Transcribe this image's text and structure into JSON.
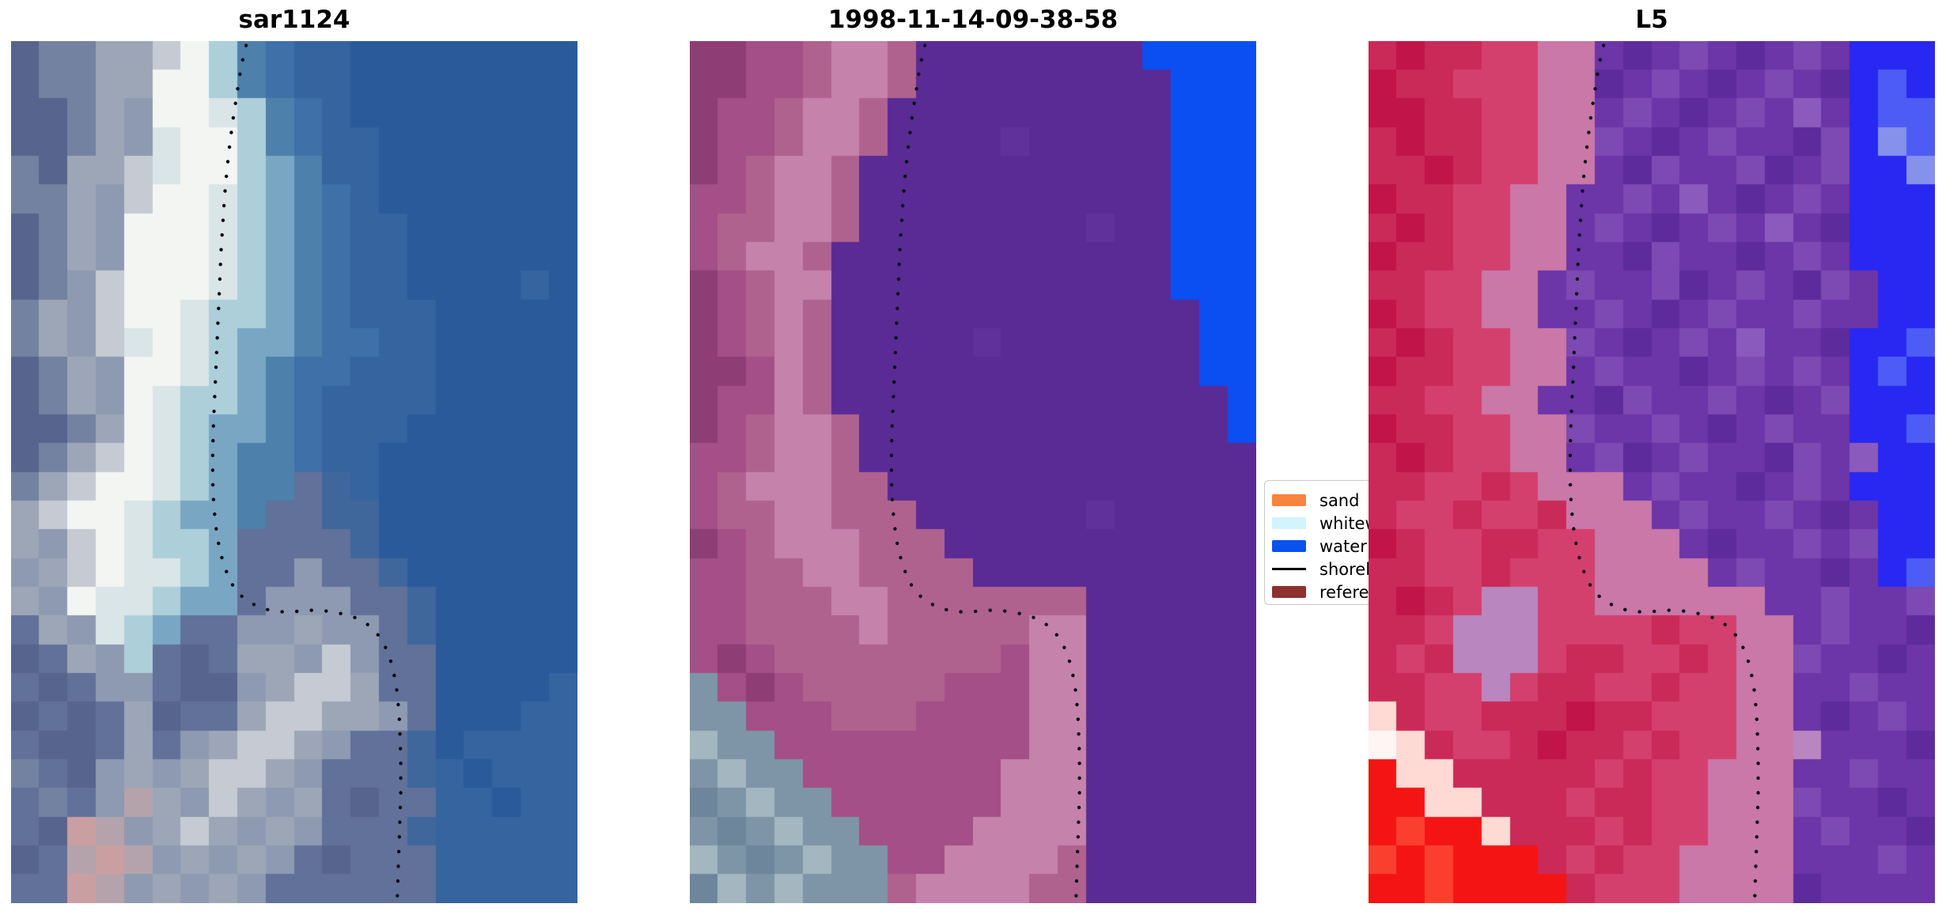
{
  "chart_data": {
    "type": "heatmap",
    "figure_kind": "three-panel coastal satellite image comparison with dotted shoreline overlay",
    "grid_cols": 20,
    "grid_rows": 30,
    "panels": [
      {
        "title": "sar1124",
        "description": "SAR backscatter image: bright beach band on left, blue sea on right",
        "palette": {
          "a": "#2b5a9b",
          "b": "#35649f",
          "c": "#4070a8",
          "d": "#4e80ac",
          "e": "#79a7c3",
          "f": "#accfda",
          "g": "#d9e5e6",
          "h": "#f3f5f3",
          "i": "#c6cbd3",
          "j": "#9da6b6",
          "k": "#7482a1",
          "l": "#57648e",
          "m": "#8e9ab1",
          "n": "#b5a3ab",
          "o": "#c99fa2",
          "p": "#61719a",
          "q": "#3f679c"
        },
        "rows": [
          "lkkjjihfdcbbaaaaaaaa",
          "lkkjjhhfdcbbaaaaaaaa",
          "llkjmhhgfdcbaaaaaaaa",
          "llkjmghhfdcbbaaaaaaa",
          "kljjighhfedbbaaaaaaa",
          "kkjmihhgfedcbaaaaaaa",
          "lkjmhhhgfedcbbaaaaaa",
          "lkjmhhhgfedcbbaaaaaa",
          "lkmihhhgfedcbbaaaaba",
          "kjmihhgffedcbbbaaaaa",
          "kjmighgfeedccbbaaaaa",
          "lkjmhhgfedccbbbaaaaa",
          "lkjmhgffedcbbbbaaaaa",
          "llkjhgfeedcbbbaaaaaa",
          "lkjihgfeddcbbaaaaaaa",
          "kjihhgfeddpqbaaaaaaa",
          "jihhgfeedppqqaaaaaaa",
          "jmihgffeppppqaaaaaaa",
          "mjihggfeppmppqaaaaaa",
          "jmhggfeepmmmppqaaaaa",
          "pjmgfeppmmjmmpqaaaaa",
          "lpjmfplpjjmimppaaaaa",
          "plpmmpllmjiijppaaaab",
          "lplpjlppjiijjmpaaabb",
          "pllpjpmjiijmppqabbbb",
          "kplmjmjiijmpppqbabbb",
          "pkpmnjmijmjplppbbabb",
          "plonmjijmjmpppqbbbbb",
          "lpnonmjmjmplpppbbbbb",
          "pponmjmjmppppppbbbbb"
        ]
      },
      {
        "title": "1998-11-14-09-38-58",
        "description": "classified optical scene: magenta land, flat violet water mask, bright blue water patch top-right, blue-grey whitewater corner bottom-left",
        "palette": {
          "r": "#8e3d75",
          "s": "#a44f87",
          "t": "#c583ac",
          "u": "#b0628f",
          "w": "#7e95a7",
          "x": "#a4b7c0",
          "y": "#6d869c",
          "P": "#5a2b94",
          "Q": "#61319b",
          "B": "#0b4ff2"
        },
        "rows": [
          "rrssuttuPPPPPPPPBBBB",
          "rrssuttuPPPPPPPPPBBB",
          "rssuttuPPPPPPPPPPBBB",
          "rssuttuPPPPQPPPPPBBB",
          "rsuttuPPPPPPPPPPPBBB",
          "ssuttuPPPPPPPPPPPBBB",
          "suuttuPPPPPPPPQPPBBB",
          "suttuPPPPPPPPPPPPBBB",
          "rsuttPPPPPPPPPPPPBBB",
          "rsutuPPPPPPPPPPPPPBB",
          "rsutuPPPPPQPPPPPPPBB",
          "rrstuPPPPPPPPPPPPPBB",
          "rsstuPPPPPPPPPPPPPPB",
          "rsuttuPPPPPPPPPPPPPB",
          "ssuttuPPPPPPPPPPPPPP",
          "sutttuuPPPPPPPPPPPPP",
          "suuttuuuPPPPPPQPPPPP",
          "rsutttuuuPPPPPPPPPPP",
          "ssuuttuuuuPPPPPPPPPP",
          "ssuuuttuuuuuuuPPPPPP",
          "ssuuuutuuuuuttPPPPPP",
          "srsuuuuuuuusttPPPPPP",
          "wsrsuuuuusssttPPPPPP",
          "wwsssuuussssttPPPPPP",
          "xwwsssssssssttPPPPPP",
          "wxwwssssssstttPPPPPP",
          "ywxwwsssssstttPPPPPP",
          "wywxwwssssttttPPPPPP",
          "xwywxwwssttttuPPPPPP",
          "yxwxwwwuttttuuPPPPPP"
        ]
      },
      {
        "title": "L5",
        "description": "Landsat-5 false colour: crimson land, noisy violet water, blue patch right, bright red and white flare bottom-left, pink shoreline band",
        "palette": {
          "A": "#c11448",
          "C": "#ca2a58",
          "D": "#d4406e",
          "E": "#c978a8",
          "F": "#ba86c0",
          "G": "#6c35a8",
          "H": "#5d2b9c",
          "I": "#7d49b2",
          "J": "#8a5bbd",
          "K": "#2828f2",
          "L": "#4d5cf5",
          "M": "#8591ea",
          "N": "#f51414",
          "O": "#fb3f2f",
          "W": "#ffd9d4",
          "X": "#fff5f2"
        },
        "rows": [
          "CACCDDEEGHGIGHGIGKKK",
          "ACCDDDEEHGIGHGIGHKLK",
          "AACCDDEEGIGHGIGJGKLL",
          "CACCDDEEIGHGIGGHIKML",
          "CCACDDEEGHIGGIHGIKKM",
          "ACCDDEEGGIGJGHGIGKKK",
          "CACDDEEGIGHGIGJGHKKK",
          "ACCDDEEGGHIGGHGIGKKK",
          "CCDDEEGIGGIHGIGHIGKK",
          "ACDDEEGGIGHGIGGIGGKK",
          "CACDDEEIGHGIGJGGHKKL",
          "ACCDDEEGIGGHGIGIGKLK",
          "CCDDEEGGHIGGIGHGIKKK",
          "ACCDDEEIGGIGHGIGGKKL",
          "CACDDEEGIHGIGGHIGJKK",
          "CCDDCDEEEGIGGHGIGKKK",
          "CDDCDDCEEEGIGGIGHGKK",
          "ACDDCCDDEEEGHGGIGIKK",
          "CCDDCDDDEEEEGIGGHGKL",
          "CACDFFDDEEEEEEGGIGGI",
          "CCDFFFDDDDCDDEEGIGGH",
          "CDCFFFDCCDDCDEEIGGHG",
          "CCDDFDCCDDCDDEEGGIGG",
          "WCDDCCCACCDDDEEGHGIG",
          "XWCDDCACCDCDDEEFGGGH",
          "NWWCCCCCDCDDEEEGGIGG",
          "NNWWCCCDCCDDEEEIGGHG",
          "NONNWCCCDCDDEEEGIGGH",
          "ONONNNCDCDDEEEEGGGIG",
          "NNONNNNCDDDEEEEHGGGG"
        ]
      }
    ],
    "shoreline": {
      "style": "dotted",
      "color": "#0a0a14",
      "points": [
        [
          0.415,
          0.005
        ],
        [
          0.406,
          0.03
        ],
        [
          0.399,
          0.06
        ],
        [
          0.392,
          0.09
        ],
        [
          0.386,
          0.12
        ],
        [
          0.381,
          0.15
        ],
        [
          0.377,
          0.18
        ],
        [
          0.374,
          0.21
        ],
        [
          0.371,
          0.24
        ],
        [
          0.369,
          0.27
        ],
        [
          0.367,
          0.3
        ],
        [
          0.365,
          0.33
        ],
        [
          0.363,
          0.36
        ],
        [
          0.361,
          0.39
        ],
        [
          0.359,
          0.42
        ],
        [
          0.357,
          0.45
        ],
        [
          0.356,
          0.48
        ],
        [
          0.356,
          0.51
        ],
        [
          0.358,
          0.54
        ],
        [
          0.362,
          0.565
        ],
        [
          0.368,
          0.59
        ],
        [
          0.377,
          0.61
        ],
        [
          0.388,
          0.628
        ],
        [
          0.402,
          0.641
        ],
        [
          0.418,
          0.65
        ],
        [
          0.436,
          0.656
        ],
        [
          0.455,
          0.66
        ],
        [
          0.475,
          0.662
        ],
        [
          0.495,
          0.662
        ],
        [
          0.515,
          0.661
        ],
        [
          0.535,
          0.66
        ],
        [
          0.555,
          0.661
        ],
        [
          0.575,
          0.663
        ],
        [
          0.595,
          0.666
        ],
        [
          0.613,
          0.67
        ],
        [
          0.63,
          0.677
        ],
        [
          0.646,
          0.687
        ],
        [
          0.659,
          0.7
        ],
        [
          0.669,
          0.716
        ],
        [
          0.676,
          0.734
        ],
        [
          0.681,
          0.753
        ],
        [
          0.684,
          0.772
        ],
        [
          0.686,
          0.792
        ],
        [
          0.687,
          0.812
        ],
        [
          0.688,
          0.832
        ],
        [
          0.688,
          0.852
        ],
        [
          0.688,
          0.872
        ],
        [
          0.687,
          0.892
        ],
        [
          0.686,
          0.912
        ],
        [
          0.685,
          0.932
        ],
        [
          0.684,
          0.952
        ],
        [
          0.683,
          0.972
        ],
        [
          0.682,
          0.992
        ]
      ]
    },
    "legend": {
      "position": "right of middle panel, partially covered by third panel",
      "entries": [
        {
          "label": "sand",
          "color": "#f9833d",
          "swatch": "patch"
        },
        {
          "label": "whitewater",
          "color": "#d2f4fc",
          "swatch": "patch"
        },
        {
          "label": "water",
          "color": "#0a52ee",
          "swatch": "patch"
        },
        {
          "label": "shoreline",
          "color": "#000000",
          "swatch": "line"
        },
        {
          "label": "reference",
          "color": "#8c3030",
          "swatch": "patch"
        }
      ]
    }
  }
}
